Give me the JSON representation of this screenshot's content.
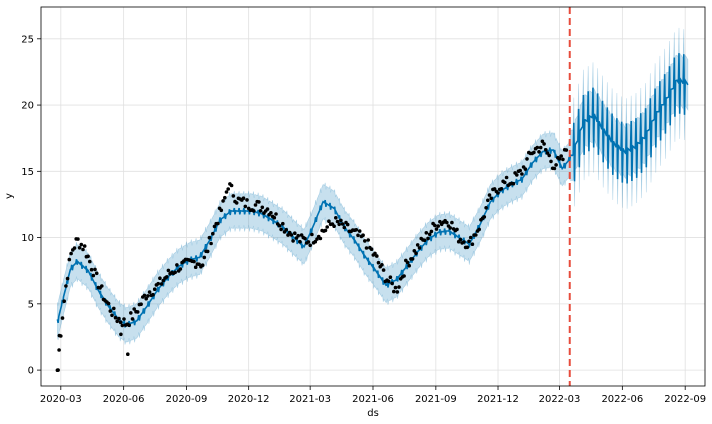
{
  "chart_data": {
    "type": "line",
    "title": "",
    "xlabel": "ds",
    "ylabel": "y",
    "xlim": [
      "2020-02-01",
      "2022-09-30"
    ],
    "ylim": [
      -1.2,
      27.4
    ],
    "x_ticks": [
      "2020-03",
      "2020-06",
      "2020-09",
      "2020-12",
      "2021-03",
      "2021-06",
      "2021-09",
      "2021-12",
      "2022-03",
      "2022-06",
      "2022-09"
    ],
    "y_ticks": [
      0,
      5,
      10,
      15,
      20,
      25
    ],
    "grid": true,
    "changepoint_date": "2022-03-16",
    "colors": {
      "forecast_line": "#0072B2",
      "interval_fill": "#0072B2",
      "observed_points": "#000000",
      "changepoint_line": "#e74c3c"
    },
    "observed_anchors": {
      "x": [
        "2020-02-25",
        "2020-03-02",
        "2020-03-10",
        "2020-03-17",
        "2020-03-25",
        "2020-04-05",
        "2020-04-20",
        "2020-05-05",
        "2020-05-20",
        "2020-06-05",
        "2020-06-20",
        "2020-07-05",
        "2020-07-20",
        "2020-08-05",
        "2020-08-20",
        "2020-09-05",
        "2020-09-15",
        "2020-09-25",
        "2020-10-10",
        "2020-10-25",
        "2020-11-01",
        "2020-11-15",
        "2020-12-01",
        "2020-12-15",
        "2021-01-01",
        "2021-01-15",
        "2021-02-01",
        "2021-02-15",
        "2021-03-01",
        "2021-03-20",
        "2021-04-05",
        "2021-04-20",
        "2021-05-05",
        "2021-05-20",
        "2021-06-05",
        "2021-06-20",
        "2021-07-05",
        "2021-07-20",
        "2021-08-05",
        "2021-08-20",
        "2021-09-05",
        "2021-09-20",
        "2021-10-05",
        "2021-10-20",
        "2021-11-05",
        "2021-11-20",
        "2021-12-05",
        "2021-12-20",
        "2022-01-05",
        "2022-01-20",
        "2022-02-05",
        "2022-02-20",
        "2022-03-05",
        "2022-03-12"
      ],
      "y": [
        0,
        3.5,
        7,
        9,
        9.8,
        9.2,
        7.2,
        5.3,
        4.0,
        3.5,
        4.5,
        5.8,
        6.3,
        7.2,
        7.8,
        8.0,
        8.2,
        8.0,
        10.5,
        12.5,
        14.0,
        12.8,
        12.5,
        12.4,
        12.1,
        11.2,
        10.3,
        9.8,
        9.8,
        10.5,
        11.2,
        10.8,
        10.3,
        9.8,
        8.5,
        7.0,
        6.0,
        8.0,
        9.2,
        10.2,
        11.2,
        11.3,
        10.0,
        9.5,
        11.0,
        13.0,
        14.0,
        14.2,
        15.0,
        16.5,
        17.0,
        15.5,
        15.8,
        16.8
      ]
    },
    "forecast_anchors": {
      "x": [
        "2020-02-25",
        "2020-03-05",
        "2020-03-15",
        "2020-03-25",
        "2020-04-10",
        "2020-04-25",
        "2020-05-10",
        "2020-05-25",
        "2020-06-05",
        "2020-06-20",
        "2020-07-05",
        "2020-07-20",
        "2020-08-05",
        "2020-08-20",
        "2020-09-05",
        "2020-09-20",
        "2020-10-05",
        "2020-10-20",
        "2020-11-05",
        "2020-11-20",
        "2020-12-05",
        "2020-12-20",
        "2021-01-05",
        "2021-01-20",
        "2021-02-05",
        "2021-02-20",
        "2021-03-05",
        "2021-03-20",
        "2021-04-05",
        "2021-04-20",
        "2021-05-05",
        "2021-05-20",
        "2021-06-05",
        "2021-06-20",
        "2021-07-05",
        "2021-07-20",
        "2021-08-05",
        "2021-08-20",
        "2021-09-05",
        "2021-09-20",
        "2021-10-05",
        "2021-10-20",
        "2021-11-05",
        "2021-11-20",
        "2021-12-05",
        "2021-12-20",
        "2022-01-05",
        "2022-01-20",
        "2022-02-05",
        "2022-02-20",
        "2022-03-05",
        "2022-03-20",
        "2022-04-05",
        "2022-04-20",
        "2022-05-05",
        "2022-05-20",
        "2022-06-05",
        "2022-06-20",
        "2022-07-05",
        "2022-07-20",
        "2022-08-05",
        "2022-08-20",
        "2022-09-05"
      ],
      "y": [
        3.6,
        5.5,
        7.6,
        8.2,
        7.5,
        6.0,
        4.8,
        3.8,
        3.4,
        3.7,
        4.8,
        6.0,
        7.0,
        7.8,
        8.3,
        8.5,
        9.8,
        11.3,
        12.0,
        12.0,
        12.0,
        11.8,
        11.3,
        10.8,
        10.0,
        9.3,
        10.8,
        12.7,
        12.2,
        10.8,
        9.8,
        8.6,
        7.5,
        6.4,
        6.8,
        7.8,
        8.9,
        9.8,
        10.4,
        10.5,
        10.0,
        9.5,
        11.0,
        12.7,
        13.5,
        14.0,
        14.4,
        15.6,
        16.5,
        16.6,
        15.2,
        16.2,
        18.6,
        19.2,
        18.0,
        17.0,
        16.4,
        16.8,
        17.6,
        19.2,
        20.4,
        21.8,
        21.6
      ]
    },
    "interval_half_width": 1.3
  }
}
